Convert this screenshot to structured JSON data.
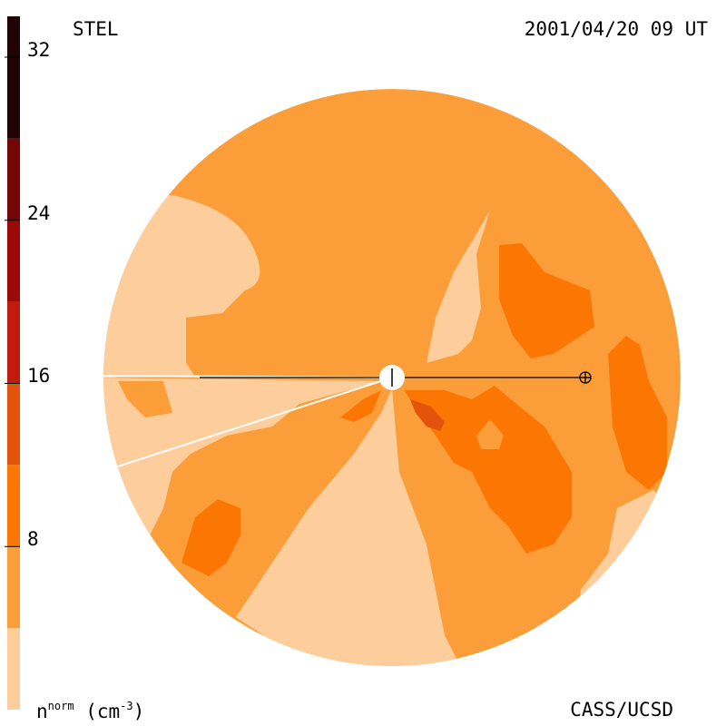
{
  "header": {
    "instrument": "STEL",
    "timestamp": "2001/04/20 09 UT"
  },
  "footer": {
    "credit": "CASS/UCSD",
    "unit_base": "n",
    "unit_sup": "norm",
    "unit_paren_open": "(cm",
    "unit_exp": "-3",
    "unit_paren_close": ")"
  },
  "chart_data": {
    "type": "heatmap",
    "projection": "polar ecliptic view, Sun at center",
    "colorbar": {
      "variable": "normalized density",
      "range": [
        0,
        34
      ],
      "ticks": [
        8,
        16,
        24,
        32
      ],
      "tick_labels": [
        "8",
        "16",
        "24",
        "32"
      ],
      "levels": [
        {
          "from": 0,
          "to": 4,
          "color": "#fdcd9c"
        },
        {
          "from": 4,
          "to": 8,
          "color": "#fb9e3a"
        },
        {
          "from": 8,
          "to": 12,
          "color": "#fc7604"
        },
        {
          "from": 12,
          "to": 16,
          "color": "#e4530c"
        },
        {
          "from": 16,
          "to": 20,
          "color": "#c21a0c"
        },
        {
          "from": 20,
          "to": 24,
          "color": "#9b0a08"
        },
        {
          "from": 24,
          "to": 28,
          "color": "#730707"
        },
        {
          "from": 28,
          "to": 34,
          "color": "#210303"
        }
      ]
    },
    "markers": [
      {
        "name": "Sun",
        "symbol": "white disc"
      },
      {
        "name": "Earth",
        "symbol": "circled plus"
      }
    ]
  }
}
